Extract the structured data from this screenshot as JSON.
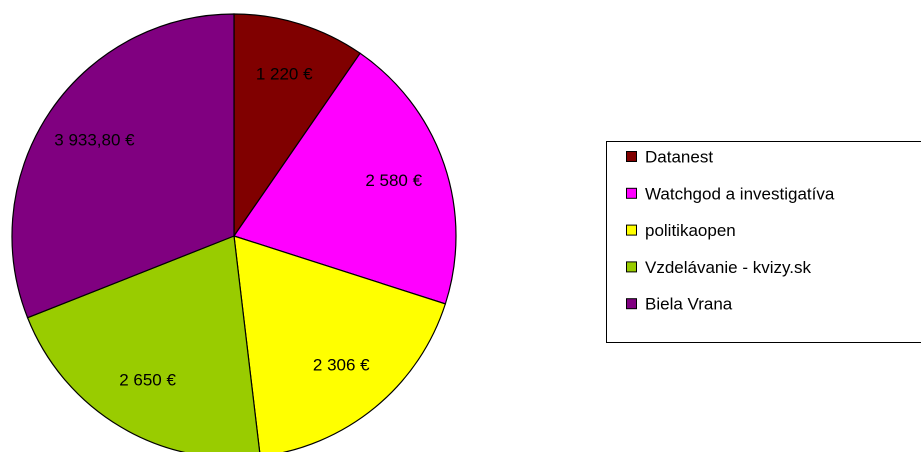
{
  "chart_data": {
    "type": "pie",
    "categories": [
      "Datanest",
      "Watchgod a investigatíva",
      "politikaopen",
      "Vzdelávanie - kvizy.sk",
      "Biela Vrana"
    ],
    "values": [
      1220,
      2580,
      2306,
      2650,
      3933.8
    ],
    "value_labels": [
      "1 220 €",
      "2 580 €",
      "2 306 €",
      "2 650 €",
      "3 933,80 €"
    ],
    "colors": [
      "#800000",
      "#ff00ff",
      "#ffff00",
      "#99cc00",
      "#800080"
    ],
    "legend": "right"
  }
}
